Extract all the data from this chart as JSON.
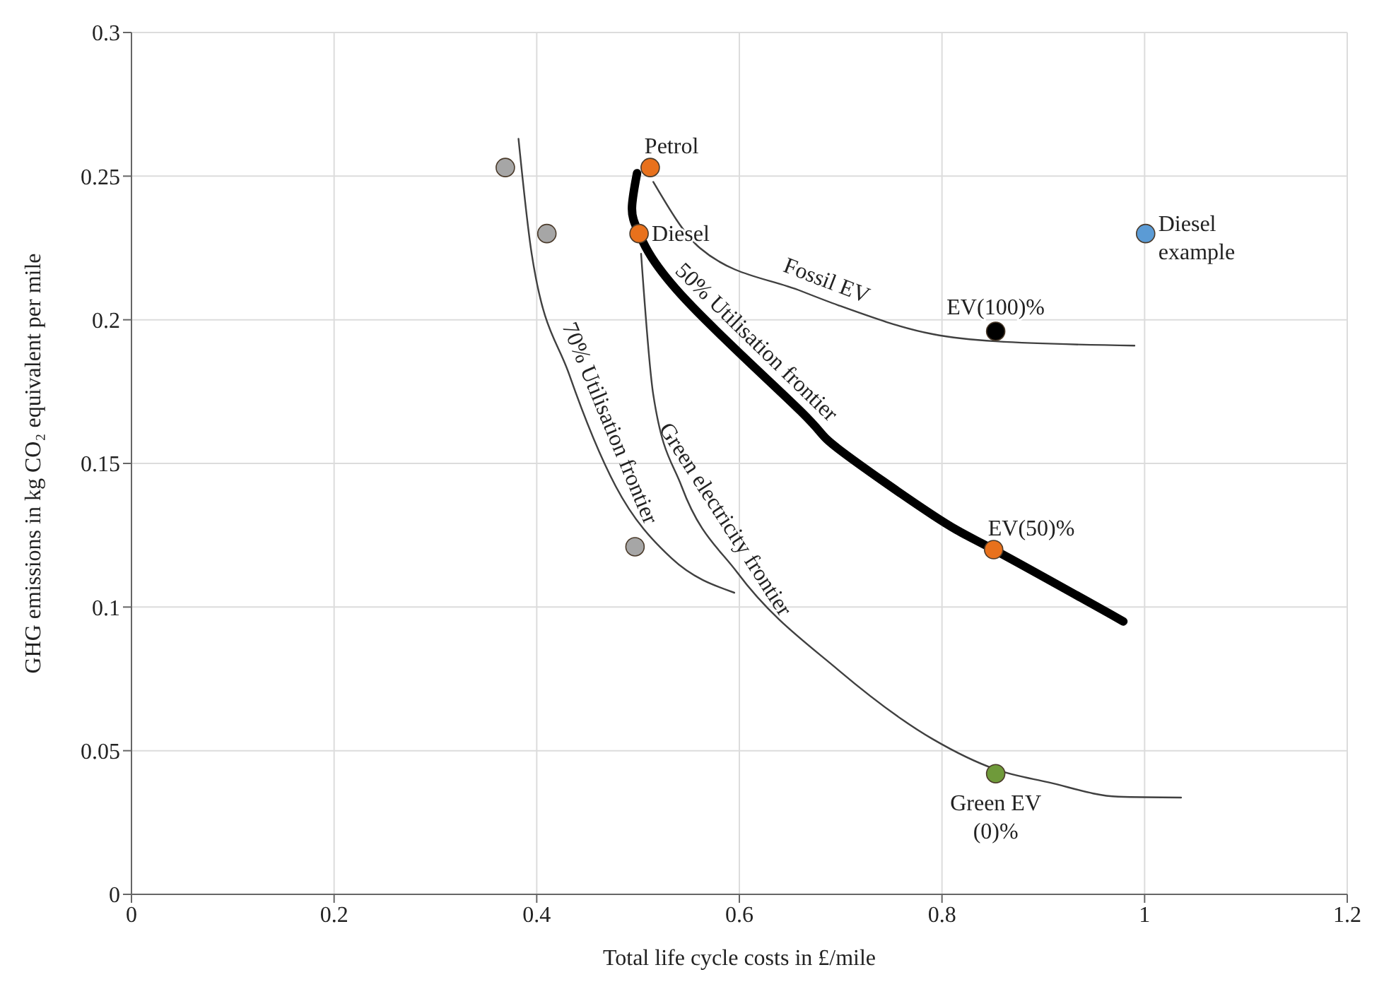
{
  "chart_data": {
    "type": "scatter",
    "xlabel": "Total life cycle costs in £/mile",
    "ylabel": "GHG emissions in kg CO₂ equivalent per mile",
    "xlim": [
      0,
      1.2
    ],
    "xticks": [
      0,
      0.2,
      0.4,
      0.6,
      0.8,
      1,
      1.2
    ],
    "ylim": [
      0,
      0.3
    ],
    "yticks": [
      0,
      0.05,
      0.1,
      0.15,
      0.2,
      0.25,
      0.3
    ],
    "grid": true,
    "series": [
      {
        "marker": "circle",
        "color": "#a6a6a6",
        "x": [
          0.369,
          0.41,
          0.497
        ],
        "values": [
          0.253,
          0.23,
          0.121
        ]
      },
      {
        "marker": "circle",
        "name": "Petrol",
        "color": "#e8711c",
        "x": [
          0.512
        ],
        "values": [
          0.253
        ]
      },
      {
        "marker": "circle",
        "name": "Diesel",
        "color": "#e8711c",
        "x": [
          0.501
        ],
        "values": [
          0.23
        ]
      },
      {
        "marker": "circle",
        "name": "EV(100)%",
        "color": "#000000",
        "x": [
          0.853
        ],
        "values": [
          0.196
        ]
      },
      {
        "marker": "circle",
        "name": "EV(50)%",
        "color": "#e8711c",
        "x": [
          0.851
        ],
        "values": [
          0.12
        ]
      },
      {
        "marker": "circle",
        "name": "Green EV (0)%",
        "color": "#6f9a3a",
        "x": [
          0.853
        ],
        "values": [
          0.042
        ]
      },
      {
        "marker": "circle",
        "name": "Diesel example",
        "color": "#5b9bd5",
        "x": [
          1.001
        ],
        "values": [
          0.23
        ]
      },
      {
        "type": "line",
        "marker": "none",
        "name": "70% Utilisation frontier",
        "color": "#404040",
        "x": [
          0.382,
          0.395,
          0.432,
          0.478,
          0.533,
          0.595
        ],
        "values": [
          0.263,
          0.223,
          0.181,
          0.142,
          0.117,
          0.105
        ]
      },
      {
        "type": "line",
        "marker": "none",
        "name": "Green electricity frontier",
        "color": "#404040",
        "x": [
          0.503,
          0.515,
          0.543,
          0.598,
          0.698,
          0.791,
          0.853,
          0.905,
          0.974,
          1.036
        ],
        "values": [
          0.223,
          0.174,
          0.142,
          0.112,
          0.078,
          0.054,
          0.0435,
          0.039,
          0.034,
          0.0337
        ]
      },
      {
        "type": "line",
        "marker": "none",
        "name": "50% Utilisation frontier",
        "color": "#000000",
        "x": [
          0.499,
          0.494,
          0.501,
          0.547,
          0.661,
          0.698,
          0.791,
          0.851,
          0.979
        ],
        "values": [
          0.251,
          0.239,
          0.23,
          0.207,
          0.168,
          0.155,
          0.132,
          0.12,
          0.095
        ]
      },
      {
        "type": "line",
        "marker": "none",
        "name": "Fossil EV",
        "color": "#404040",
        "x": [
          0.515,
          0.561,
          0.661,
          0.698,
          0.791,
          0.853,
          0.99
        ],
        "values": [
          0.248,
          0.225,
          0.21,
          0.205,
          0.195,
          0.1925,
          0.191
        ]
      }
    ]
  }
}
